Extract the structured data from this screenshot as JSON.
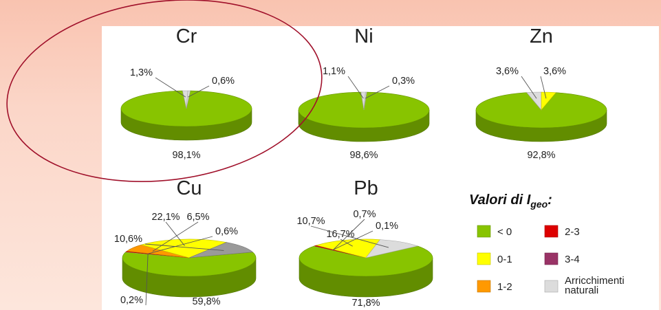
{
  "colors": {
    "green": "#88c400",
    "yellow": "#ffff00",
    "orange": "#ff9900",
    "red": "#dd0000",
    "purple": "#993366",
    "lightgray": "#dcdcdc",
    "midgray": "#9a9a9a",
    "highlight_circle": "#a0102a"
  },
  "legend": {
    "title_main": "Valori di I",
    "title_sub": "geo",
    "title_colon": ":",
    "items": [
      {
        "label": "< 0",
        "color": "green"
      },
      {
        "label": "2-3",
        "color": "red"
      },
      {
        "label": "0-1",
        "color": "yellow"
      },
      {
        "label": "3-4",
        "color": "purple"
      },
      {
        "label": "1-2",
        "color": "orange"
      },
      {
        "label": "Arricchimenti",
        "label2": "naturali",
        "color": "lightgray"
      }
    ]
  },
  "chart_data": [
    {
      "type": "pie",
      "title": "Cr",
      "slices": [
        {
          "label": "98,1%",
          "value": 98.1,
          "color": "green"
        },
        {
          "label": "1,3%",
          "value": 1.3,
          "color": "lightgray"
        },
        {
          "label": "0,6%",
          "value": 0.6,
          "color": "lightgray"
        }
      ]
    },
    {
      "type": "pie",
      "title": "Ni",
      "slices": [
        {
          "label": "98,6%",
          "value": 98.6,
          "color": "green"
        },
        {
          "label": "1,1%",
          "value": 1.1,
          "color": "lightgray"
        },
        {
          "label": "0,3%",
          "value": 0.3,
          "color": "lightgray"
        }
      ]
    },
    {
      "type": "pie",
      "title": "Zn",
      "slices": [
        {
          "label": "92,8%",
          "value": 92.8,
          "color": "green"
        },
        {
          "label": "3,6%",
          "value": 3.6,
          "color": "lightgray"
        },
        {
          "label": "3,6%",
          "value": 3.6,
          "color": "yellow"
        }
      ]
    },
    {
      "type": "pie",
      "title": "Cu",
      "slices": [
        {
          "label": "59,8%",
          "value": 59.8,
          "color": "green"
        },
        {
          "label": "0,2%",
          "value": 0.2,
          "color": "lightgray"
        },
        {
          "label": "0,6%",
          "value": 0.6,
          "color": "red"
        },
        {
          "label": "6,5%",
          "value": 6.5,
          "color": "orange"
        },
        {
          "label": "22,1%",
          "value": 22.1,
          "color": "yellow"
        },
        {
          "label": "10,6%",
          "value": 10.6,
          "color": "midgray"
        }
      ]
    },
    {
      "type": "pie",
      "title": "Pb",
      "slices": [
        {
          "label": "71,8%",
          "value": 71.8,
          "color": "green"
        },
        {
          "label": "0,1%",
          "value": 0.1,
          "color": "lightgray"
        },
        {
          "label": "0,7%",
          "value": 0.7,
          "color": "red"
        },
        {
          "label": "16,7%",
          "value": 16.7,
          "color": "yellow"
        },
        {
          "label": "10,7%",
          "value": 10.7,
          "color": "lightgray"
        }
      ]
    }
  ]
}
